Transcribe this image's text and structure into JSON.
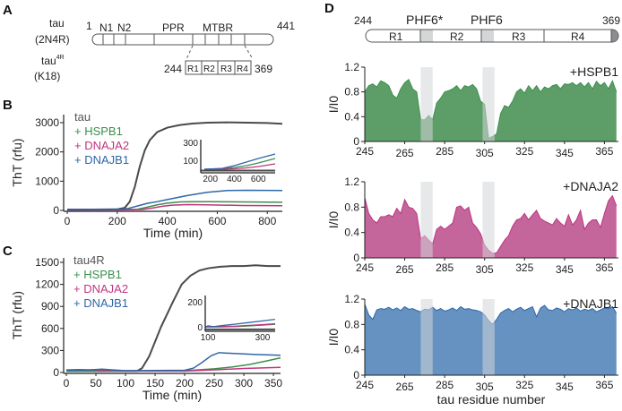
{
  "panel_labels": {
    "a": "A",
    "b": "B",
    "c": "C",
    "d": "D"
  },
  "panel_a": {
    "full_name": "tau",
    "full_isoform": "(2N4R)",
    "start": "1",
    "end": "441",
    "domains": [
      "N1",
      "N2",
      "PPR",
      "MTBR"
    ],
    "k18_name": "tau",
    "k18_superscript": "4R",
    "k18_isoform": "(K18)",
    "k18_start": "244",
    "k18_end": "369",
    "repeats": [
      "R1",
      "R2",
      "R3",
      "R4"
    ]
  },
  "panel_d_header": {
    "start": "244",
    "end": "369",
    "motifs": [
      "PHF6*",
      "PHF6"
    ],
    "repeats": [
      "R1",
      "R2",
      "R3",
      "R4"
    ]
  },
  "colors": {
    "tau": "#4a4a4a",
    "HSPB1": "#3b8f4c",
    "DNAJA2": "#c0357f",
    "DNAJB1": "#2f67a8",
    "HSPB1_fill": "#5d9e68",
    "DNAJA2_fill": "#c4659c",
    "DNAJB1_fill": "#6592c0",
    "motif_band": "#d4d6d8"
  },
  "chart_data": [
    {
      "id": "B",
      "type": "line",
      "xlabel": "Time (min)",
      "ylabel": "ThT (rfu)",
      "xlim": [
        0,
        860
      ],
      "ylim": [
        0,
        3000
      ],
      "xticks": [
        0,
        200,
        400,
        600,
        800
      ],
      "yticks": [
        0,
        1000,
        2000,
        3000
      ],
      "legend": [
        "tau",
        "+ HSPB1",
        "+ DNAJA2",
        "+ DNAJB1"
      ],
      "legend_position": "top-left",
      "series": [
        {
          "name": "tau",
          "color": "tau",
          "x": [
            0,
            100,
            200,
            230,
            250,
            270,
            290,
            310,
            330,
            360,
            400,
            450,
            500,
            560,
            640,
            720,
            800,
            860
          ],
          "y": [
            30,
            30,
            40,
            90,
            300,
            800,
            1500,
            2050,
            2400,
            2680,
            2830,
            2920,
            2970,
            3000,
            3010,
            3000,
            2990,
            2960
          ]
        },
        {
          "name": "+ HSPB1",
          "color": "HSPB1",
          "x": [
            0,
            200,
            280,
            320,
            360,
            400,
            450,
            500,
            560,
            700,
            860
          ],
          "y": [
            20,
            25,
            40,
            110,
            190,
            250,
            290,
            300,
            300,
            290,
            280
          ]
        },
        {
          "name": "+ DNAJA2",
          "color": "DNAJA2",
          "x": [
            0,
            200,
            300,
            340,
            380,
            420,
            480,
            560,
            700,
            860
          ],
          "y": [
            10,
            15,
            30,
            80,
            140,
            180,
            200,
            190,
            170,
            160
          ]
        },
        {
          "name": "+ DNAJB1",
          "color": "DNAJB1",
          "x": [
            0,
            200,
            240,
            280,
            320,
            360,
            400,
            480,
            560,
            640,
            720,
            860
          ],
          "y": [
            25,
            30,
            60,
            150,
            240,
            300,
            370,
            510,
            620,
            680,
            690,
            680
          ]
        }
      ],
      "inset": {
        "xlim": [
          120,
          740
        ],
        "ylim": [
          -40,
          330
        ],
        "xticks": [
          200,
          400,
          600
        ],
        "yticks": [
          100,
          300
        ],
        "series": [
          {
            "color": "tau",
            "x": [
              120,
              740
            ],
            "y": [
              -15,
              -15
            ]
          },
          {
            "color": "HSPB1",
            "x": [
              150,
              300,
              400,
              500,
              600,
              740
            ],
            "y": [
              0,
              5,
              20,
              40,
              70,
              120
            ]
          },
          {
            "color": "DNAJA2",
            "x": [
              150,
              300,
              400,
              500,
              600,
              740
            ],
            "y": [
              0,
              0,
              5,
              15,
              30,
              60
            ]
          },
          {
            "color": "DNAJB1",
            "x": [
              150,
              300,
              400,
              500,
              600,
              740
            ],
            "y": [
              0,
              10,
              40,
              80,
              120,
              170
            ]
          }
        ]
      }
    },
    {
      "id": "C",
      "type": "line",
      "xlabel": "Time (min)",
      "ylabel": "ThT (rfu)",
      "xlim": [
        0,
        362
      ],
      "ylim": [
        0,
        1500
      ],
      "xticks": [
        0,
        50,
        100,
        150,
        200,
        250,
        300,
        350
      ],
      "yticks": [
        0,
        300,
        600,
        900,
        1200,
        1500
      ],
      "legend": [
        "tau4R",
        "+ HSPB1",
        "+ DNAJA2",
        "+ DNAJB1"
      ],
      "legend_position": "top-left",
      "series": [
        {
          "name": "tau4R",
          "color": "tau",
          "x": [
            0,
            60,
            120,
            128,
            140,
            160,
            180,
            195,
            210,
            225,
            240,
            260,
            280,
            300,
            320,
            340,
            362
          ],
          "y": [
            20,
            20,
            22,
            60,
            220,
            620,
            960,
            1200,
            1320,
            1390,
            1420,
            1440,
            1450,
            1450,
            1460,
            1450,
            1450
          ]
        },
        {
          "name": "+ HSPB1",
          "color": "HSPB1",
          "x": [
            0,
            100,
            200,
            250,
            280,
            310,
            340,
            362
          ],
          "y": [
            20,
            20,
            25,
            50,
            75,
            110,
            160,
            200
          ]
        },
        {
          "name": "+ DNAJA2",
          "color": "DNAJA2",
          "x": [
            0,
            20,
            50,
            100,
            200,
            260,
            300,
            362
          ],
          "y": [
            35,
            40,
            35,
            20,
            20,
            40,
            55,
            70
          ]
        },
        {
          "name": "+ DNAJB1",
          "color": "DNAJB1",
          "x": [
            0,
            40,
            60,
            100,
            200,
            215,
            230,
            245,
            258,
            280,
            320,
            362
          ],
          "y": [
            30,
            35,
            45,
            25,
            30,
            60,
            140,
            230,
            270,
            260,
            245,
            235
          ]
        }
      ],
      "inset": {
        "xlim": [
          90,
          346
        ],
        "ylim": [
          -35,
          250
        ],
        "xticks": [
          100,
          300
        ],
        "yticks": [
          0,
          200
        ],
        "series": [
          {
            "color": "tau",
            "x": [
              90,
              346
            ],
            "y": [
              -20,
              -20
            ]
          },
          {
            "color": "HSPB1",
            "x": [
              90,
              150,
              200,
              250,
              300,
              346
            ],
            "y": [
              0,
              0,
              3,
              8,
              14,
              20
            ]
          },
          {
            "color": "DNAJA2",
            "x": [
              90,
              150,
              200,
              250,
              300,
              346
            ],
            "y": [
              0,
              2,
              6,
              12,
              18,
              25
            ]
          },
          {
            "color": "DNAJB1",
            "x": [
              90,
              100,
              120,
              150,
              200,
              250,
              300,
              346
            ],
            "y": [
              0,
              8,
              2,
              10,
              22,
              35,
              48,
              60
            ]
          }
        ]
      }
    },
    {
      "id": "D",
      "type": "area",
      "xlabel": "tau residue number",
      "ylabel": "I/I0",
      "xlim": [
        245,
        372
      ],
      "ylim": [
        0,
        1.2
      ],
      "xticks": [
        245,
        265,
        285,
        305,
        325,
        345,
        365
      ],
      "yticks": [
        0,
        0.4,
        0.8,
        1.2
      ],
      "highlight_ranges": [
        {
          "label": "PHF6*",
          "range": [
            273,
            279
          ]
        },
        {
          "label": "PHF6",
          "range": [
            304,
            310
          ]
        }
      ],
      "x": [
        245,
        247,
        249,
        251,
        253,
        255,
        257,
        259,
        261,
        263,
        265,
        267,
        269,
        271,
        273,
        275,
        277,
        279,
        281,
        283,
        285,
        287,
        289,
        291,
        293,
        295,
        297,
        299,
        301,
        303,
        305,
        307,
        309,
        311,
        313,
        315,
        317,
        319,
        321,
        323,
        325,
        327,
        329,
        331,
        333,
        335,
        337,
        339,
        341,
        343,
        345,
        347,
        349,
        351,
        353,
        355,
        357,
        359,
        361,
        363,
        365,
        367,
        369,
        371
      ],
      "series": [
        {
          "name": "+HSPB1",
          "color": "HSPB1",
          "fill": "HSPB1_fill",
          "y": [
            0.8,
            0.9,
            0.93,
            0.88,
            0.98,
            0.95,
            0.9,
            0.75,
            0.7,
            0.85,
            0.95,
            1.0,
            0.85,
            0.8,
            0.35,
            0.35,
            0.42,
            0.35,
            0.62,
            0.7,
            0.8,
            0.82,
            0.85,
            0.9,
            0.82,
            0.9,
            0.88,
            0.92,
            0.85,
            0.65,
            0.6,
            0.05,
            0.08,
            0.12,
            0.45,
            0.58,
            0.55,
            0.65,
            0.8,
            0.85,
            0.78,
            0.9,
            0.82,
            0.9,
            0.8,
            0.88,
            0.85,
            0.9,
            0.92,
            0.85,
            0.93,
            0.92,
            0.95,
            0.9,
            0.95,
            0.88,
            0.95,
            0.85,
            0.97,
            0.9,
            0.95,
            0.85,
            0.98,
            0.8
          ]
        },
        {
          "name": "+DNAJA2",
          "color": "DNAJA2",
          "fill": "DNAJA2_fill",
          "y": [
            0.95,
            0.7,
            0.6,
            0.55,
            0.65,
            0.65,
            0.68,
            0.65,
            0.78,
            0.7,
            0.92,
            0.8,
            0.78,
            0.7,
            0.3,
            0.35,
            0.28,
            0.22,
            0.45,
            0.5,
            0.45,
            0.5,
            0.55,
            0.8,
            0.82,
            0.75,
            0.8,
            0.55,
            0.48,
            0.38,
            0.2,
            0.12,
            0.07,
            0.08,
            0.18,
            0.28,
            0.35,
            0.5,
            0.6,
            0.62,
            0.7,
            0.6,
            0.68,
            0.75,
            0.62,
            0.58,
            0.55,
            0.52,
            0.62,
            0.55,
            0.5,
            0.68,
            0.52,
            0.6,
            0.75,
            0.45,
            0.55,
            0.6,
            0.6,
            0.48,
            0.7,
            0.9,
            0.98,
            0.82
          ]
        },
        {
          "name": "+DNAJB1",
          "color": "DNAJB1",
          "fill": "DNAJB1_fill",
          "y": [
            1.12,
            0.95,
            0.88,
            1.03,
            1.05,
            1.04,
            1.07,
            1.03,
            1.06,
            1.02,
            1.08,
            1.04,
            1.05,
            1.02,
            1.0,
            1.04,
            1.03,
            1.07,
            1.02,
            1.05,
            1.01,
            1.03,
            1.06,
            1.02,
            1.08,
            1.04,
            1.05,
            1.03,
            1.02,
            1.0,
            0.95,
            0.86,
            0.8,
            0.88,
            0.98,
            1.02,
            1.05,
            1.0,
            1.04,
            1.07,
            1.02,
            1.05,
            1.08,
            0.92,
            1.06,
            1.1,
            1.03,
            1.02,
            1.06,
            1.04,
            1.0,
            1.05,
            1.03,
            1.06,
            1.01,
            1.04,
            1.02,
            1.05,
            1.0,
            1.03,
            1.06,
            1.05,
            1.08,
            0.98
          ]
        }
      ]
    }
  ]
}
